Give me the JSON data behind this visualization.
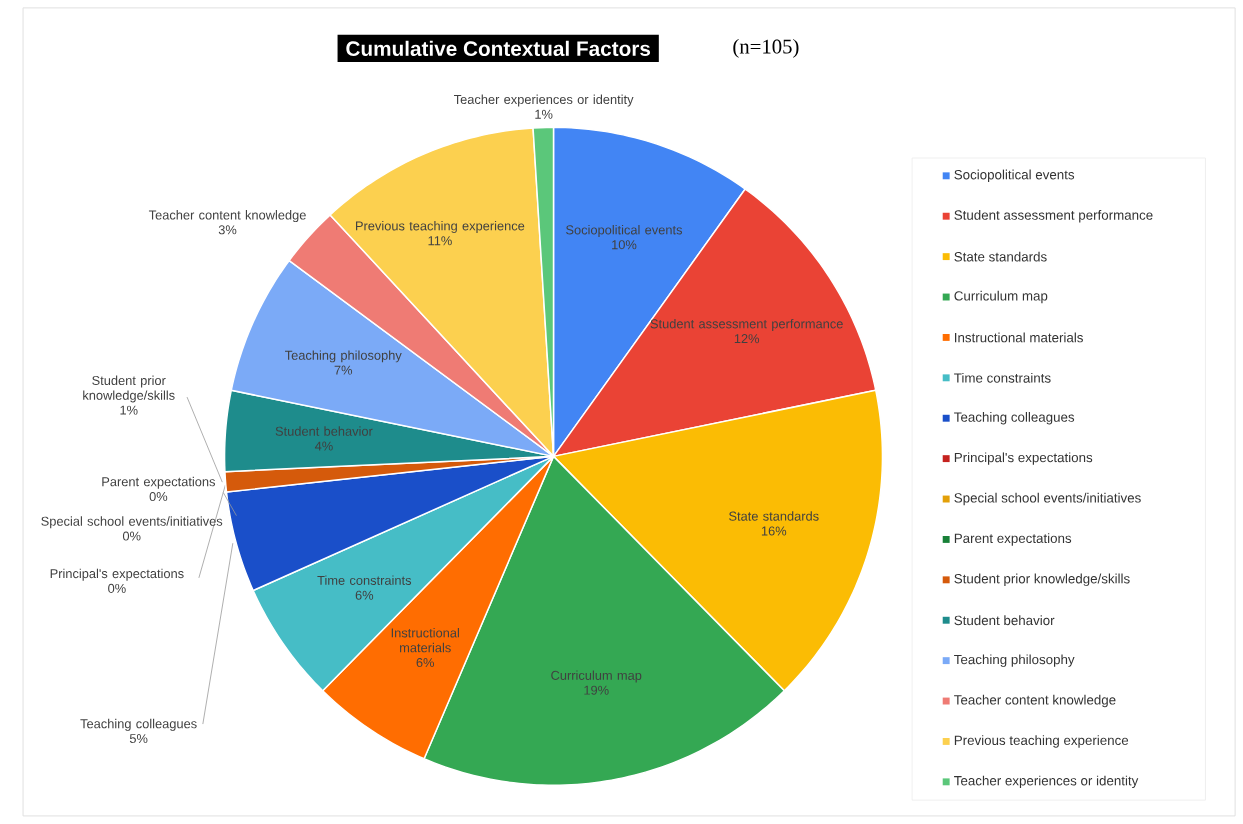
{
  "chart_data": {
    "type": "pie",
    "title": "Cumulative Contextual Factors",
    "subtitle": "(n=105)",
    "categories": [
      "Sociopolitical events",
      "Student assessment performance",
      "State standards",
      "Curriculum map",
      "Instructional materials",
      "Time constraints",
      "Teaching colleagues",
      "Principal's expectations",
      "Special school events/initiatives",
      "Parent expectations",
      "Student prior knowledge/skills",
      "Student behavior",
      "Teaching philosophy",
      "Teacher content knowledge",
      "Previous teaching experience",
      "Teacher experiences or identity"
    ],
    "values": [
      10,
      12,
      16,
      19,
      6,
      6,
      5,
      0,
      0,
      0,
      1,
      4,
      7,
      3,
      11,
      1
    ],
    "value_labels": [
      "10%",
      "12%",
      "16%",
      "19%",
      "6%",
      "6%",
      "5%",
      "0%",
      "0%",
      "0%",
      "1%",
      "4%",
      "7%",
      "3%",
      "11%",
      "1%"
    ],
    "colors": [
      "#4285f4",
      "#ea4335",
      "#fbbc04",
      "#34a853",
      "#ff6d01",
      "#46bdc6",
      "#1a4fc9",
      "#c5221f",
      "#e3a008",
      "#188038",
      "#d55a0b",
      "#1e8c8c",
      "#7baaf7",
      "#ef7b74",
      "#fcd04f",
      "#5bc77a"
    ],
    "legend": "right"
  }
}
